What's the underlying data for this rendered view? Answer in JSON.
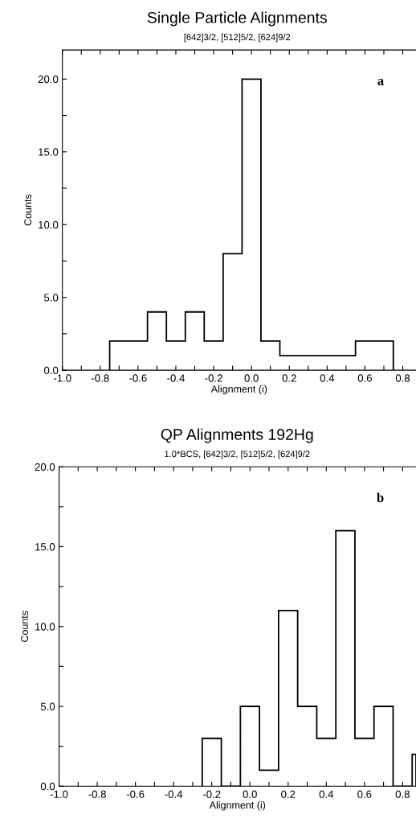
{
  "chart_data": [
    {
      "type": "histogram",
      "title": "Single Particle Alignments",
      "subtitle": "[642]3/2, [512]5/2, [624]9/2",
      "xlabel": "Alignment (i)",
      "ylabel": "Counts",
      "annotations": [
        "a"
      ],
      "color": "#000000",
      "bins": [
        -0.75,
        -0.65,
        -0.55,
        -0.45,
        -0.35,
        -0.25,
        -0.15,
        -0.05,
        0.05,
        0.15,
        0.25,
        0.35,
        0.45,
        0.55,
        0.65,
        0.75
      ],
      "values": [
        2,
        2,
        4,
        2,
        4,
        2,
        8,
        20,
        2,
        1,
        1,
        1,
        1,
        2,
        2
      ],
      "xlim": [
        -1.0,
        0.87
      ],
      "ylim": [
        0,
        22
      ],
      "xticks": [
        {
          "value": -1.0,
          "label": "-1.0"
        },
        {
          "value": -0.9,
          "label": null
        },
        {
          "value": -0.8,
          "label": "-0.8"
        },
        {
          "value": -0.7,
          "label": null
        },
        {
          "value": -0.6,
          "label": "-0.6"
        },
        {
          "value": -0.5,
          "label": null
        },
        {
          "value": -0.4,
          "label": "-0.4"
        },
        {
          "value": -0.3,
          "label": null
        },
        {
          "value": -0.2,
          "label": "-0.2"
        },
        {
          "value": -0.1,
          "label": null
        },
        {
          "value": 0.0,
          "label": "0.0"
        },
        {
          "value": 0.1,
          "label": null
        },
        {
          "value": 0.2,
          "label": "0.2"
        },
        {
          "value": 0.3,
          "label": null
        },
        {
          "value": 0.4,
          "label": "0.4"
        },
        {
          "value": 0.5,
          "label": null
        },
        {
          "value": 0.6,
          "label": "0.6"
        },
        {
          "value": 0.7,
          "label": null
        },
        {
          "value": 0.8,
          "label": "0.8"
        }
      ],
      "yticks": [
        {
          "value": 0,
          "label": "0.0"
        },
        {
          "value": 2.5,
          "label": null
        },
        {
          "value": 5,
          "label": "5.0"
        },
        {
          "value": 7.5,
          "label": null
        },
        {
          "value": 10,
          "label": "10.0"
        },
        {
          "value": 12.5,
          "label": null
        },
        {
          "value": 15,
          "label": "15.0"
        },
        {
          "value": 17.5,
          "label": null
        },
        {
          "value": 20,
          "label": "20.0"
        }
      ],
      "grid": false,
      "legend": false
    },
    {
      "type": "histogram",
      "title": "QP Alignments 192Hg",
      "subtitle": "1.0*BCS, [642]3/2, [512]5/2, [624]9/2",
      "xlabel": "Alignment (i)",
      "ylabel": "Counts",
      "annotations": [
        "b"
      ],
      "color": "#000000",
      "bins": [
        -0.25,
        -0.15,
        -0.05,
        0.05,
        0.15,
        0.25,
        0.35,
        0.45,
        0.55,
        0.65,
        0.75,
        0.85,
        0.87
      ],
      "values": [
        3,
        0,
        5,
        1,
        11,
        5,
        3,
        16,
        3,
        5,
        0,
        2
      ],
      "xlim": [
        -1.0,
        0.87
      ],
      "ylim": [
        0,
        20
      ],
      "xticks": [
        {
          "value": -1.0,
          "label": "-1.0"
        },
        {
          "value": -0.9,
          "label": null
        },
        {
          "value": -0.8,
          "label": "-0.8"
        },
        {
          "value": -0.7,
          "label": null
        },
        {
          "value": -0.6,
          "label": "-0.6"
        },
        {
          "value": -0.5,
          "label": null
        },
        {
          "value": -0.4,
          "label": "-0.4"
        },
        {
          "value": -0.3,
          "label": null
        },
        {
          "value": -0.2,
          "label": "-0.2"
        },
        {
          "value": -0.1,
          "label": null
        },
        {
          "value": 0.0,
          "label": "0.0"
        },
        {
          "value": 0.1,
          "label": null
        },
        {
          "value": 0.2,
          "label": "0.2"
        },
        {
          "value": 0.3,
          "label": null
        },
        {
          "value": 0.4,
          "label": "0.4"
        },
        {
          "value": 0.5,
          "label": null
        },
        {
          "value": 0.6,
          "label": "0.6"
        },
        {
          "value": 0.7,
          "label": null
        },
        {
          "value": 0.8,
          "label": "0.8"
        }
      ],
      "yticks": [
        {
          "value": 0,
          "label": "0.0"
        },
        {
          "value": 2.5,
          "label": null
        },
        {
          "value": 5,
          "label": "5.0"
        },
        {
          "value": 7.5,
          "label": null
        },
        {
          "value": 10,
          "label": "10.0"
        },
        {
          "value": 12.5,
          "label": null
        },
        {
          "value": 15,
          "label": "15.0"
        },
        {
          "value": 17.5,
          "label": null
        },
        {
          "value": 20,
          "label": "20.0"
        }
      ],
      "grid": false,
      "legend": false
    }
  ]
}
